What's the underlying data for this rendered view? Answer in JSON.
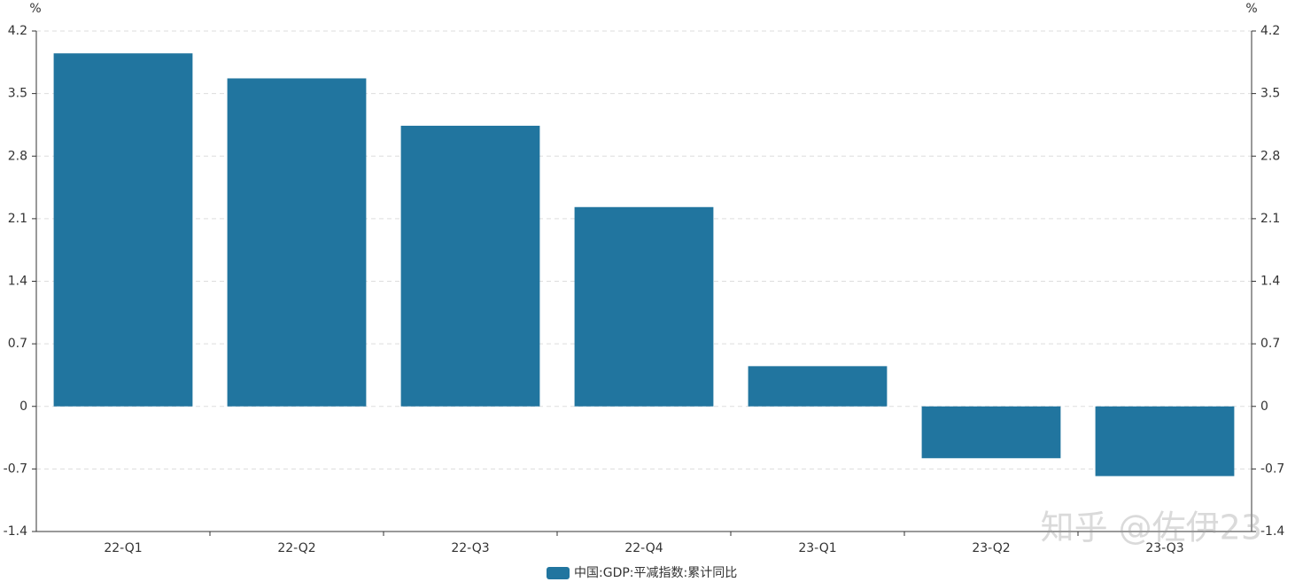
{
  "chart_data": {
    "type": "bar",
    "ylabel": "%",
    "y2label": "%",
    "categories": [
      "22-Q1",
      "22-Q2",
      "22-Q3",
      "22-Q4",
      "23-Q1",
      "23-Q2",
      "23-Q3"
    ],
    "series": [
      {
        "name": "中国:GDP:平减指数:累计同比",
        "color": "#21759f",
        "values": [
          3.95,
          3.67,
          3.14,
          2.23,
          0.45,
          -0.58,
          -0.78
        ]
      }
    ],
    "ylim": [
      -1.4,
      4.2
    ],
    "yticks": [
      -1.4,
      -0.7,
      0,
      0.7,
      1.4,
      2.1,
      2.8,
      3.5,
      4.2
    ],
    "y2lim": [
      -1.4,
      4.2
    ],
    "y2ticks": [
      -1.4,
      -0.7,
      0,
      0.7,
      1.4,
      2.1,
      2.8,
      3.5,
      4.2
    ],
    "grid": true,
    "legend": "bottom",
    "watermark": "知乎 @佐伊23"
  }
}
